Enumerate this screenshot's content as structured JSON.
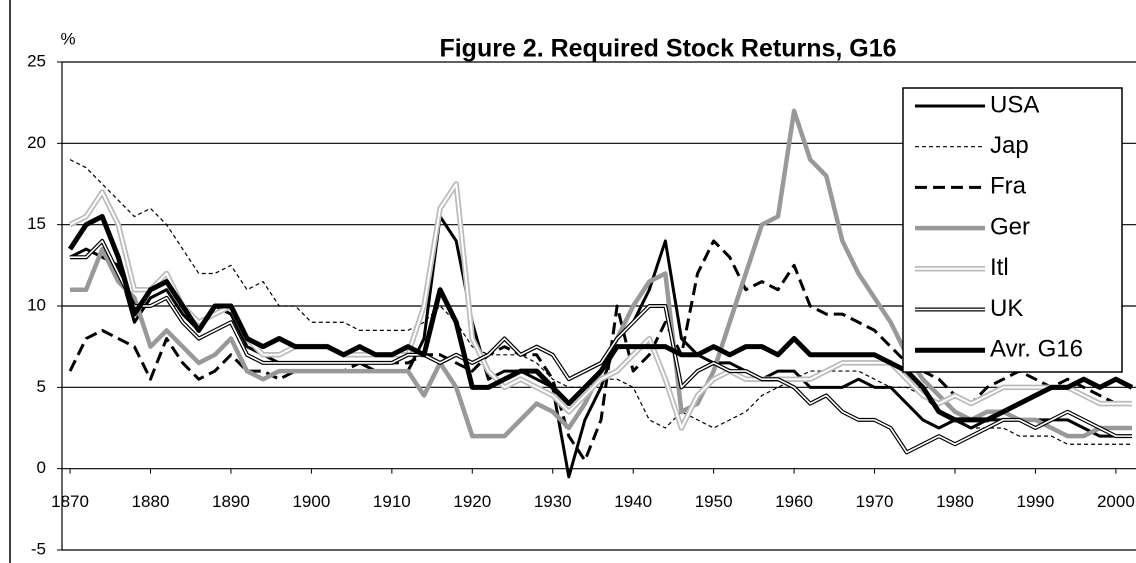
{
  "chart_data": {
    "type": "line",
    "title": "Figure 2. Required Stock Returns, G16",
    "y_unit": "%",
    "x": [
      1870,
      1872,
      1874,
      1876,
      1878,
      1880,
      1882,
      1884,
      1886,
      1888,
      1890,
      1892,
      1894,
      1896,
      1898,
      1900,
      1902,
      1904,
      1906,
      1908,
      1910,
      1912,
      1914,
      1916,
      1918,
      1920,
      1922,
      1924,
      1926,
      1928,
      1930,
      1932,
      1934,
      1936,
      1938,
      1940,
      1942,
      1944,
      1946,
      1948,
      1950,
      1952,
      1954,
      1956,
      1958,
      1960,
      1962,
      1964,
      1966,
      1968,
      1970,
      1972,
      1974,
      1976,
      1978,
      1980,
      1982,
      1984,
      1986,
      1988,
      1990,
      1992,
      1994,
      1996,
      1998,
      2000,
      2002
    ],
    "xlim": [
      1869,
      2002.5
    ],
    "xticks": [
      1870,
      1880,
      1890,
      1900,
      1910,
      1920,
      1930,
      1940,
      1950,
      1960,
      1970,
      1980,
      1990,
      2000
    ],
    "ylim": [
      -5,
      25
    ],
    "yticks": [
      -5,
      0,
      5,
      10,
      15,
      20,
      25
    ],
    "grid": true,
    "legend": "upper right",
    "series": [
      {
        "name": "USA",
        "color": "#000000",
        "values": [
          13,
          13.5,
          13,
          12.5,
          9,
          10.5,
          11,
          9.5,
          8.5,
          10,
          9.5,
          7.5,
          7,
          6.5,
          6.5,
          6.5,
          6.5,
          6.5,
          6.5,
          6,
          6,
          6,
          8,
          15.5,
          14,
          9,
          5.5,
          6,
          6,
          5.5,
          5,
          -0.5,
          3,
          5,
          8,
          9,
          11,
          14,
          8,
          7,
          6.5,
          6.5,
          6,
          5.5,
          6,
          6,
          5,
          5,
          5,
          5.5,
          5,
          5,
          4,
          3,
          2.5,
          3,
          2.5,
          3,
          3,
          3,
          3,
          3,
          3,
          2.5,
          2,
          2,
          2
        ]
      },
      {
        "name": "Jap",
        "color": "#000000",
        "values": [
          19,
          18.5,
          17.5,
          16.5,
          15.5,
          16,
          15,
          13.5,
          12,
          12,
          12.5,
          11,
          11.5,
          10,
          10,
          9,
          9,
          9,
          8.5,
          8.5,
          8.5,
          8.5,
          9,
          10,
          9,
          7.5,
          7,
          7,
          7,
          6.5,
          5.5,
          5,
          5,
          5.5,
          5.5,
          5,
          3,
          2.5,
          3.5,
          3,
          2.5,
          3,
          3.5,
          4.5,
          5,
          5.5,
          6,
          6,
          6,
          6,
          5.5,
          5,
          5,
          4.5,
          3.5,
          3,
          2.5,
          2.5,
          2.5,
          2,
          2,
          2,
          1.5,
          1.5,
          1.5,
          1.5,
          1.5
        ]
      },
      {
        "name": "Fra",
        "color": "#000000",
        "values": [
          6,
          8,
          8.5,
          8,
          7.5,
          5.5,
          8,
          6.5,
          5.5,
          6,
          7,
          6,
          6,
          5.5,
          6,
          6,
          6,
          6,
          6.5,
          6.5,
          6.5,
          6.5,
          7,
          7,
          6.5,
          6,
          7,
          7.5,
          7,
          7,
          5.5,
          2,
          0.5,
          3,
          10,
          6,
          7,
          9,
          7,
          12,
          14,
          13,
          11,
          11.5,
          11,
          12.5,
          10,
          9.5,
          9.5,
          9,
          8.5,
          7.5,
          6.5,
          6,
          5.5,
          4.5,
          4,
          5,
          5.5,
          6,
          5.5,
          5,
          5.5,
          5,
          4.5,
          4,
          4
        ]
      },
      {
        "name": "Ger",
        "color": "#999999",
        "values": [
          11,
          11,
          13.5,
          11.5,
          10.5,
          7.5,
          8.5,
          7.5,
          6.5,
          7,
          8,
          6,
          5.5,
          6,
          6,
          6,
          6,
          6,
          6,
          6,
          6,
          6,
          4.5,
          6.5,
          5,
          2,
          2,
          2,
          3,
          4,
          3.5,
          2.5,
          4,
          6,
          8,
          10,
          11.5,
          12,
          3.5,
          4,
          6,
          9,
          12,
          15,
          15.5,
          22,
          19,
          18,
          14,
          12,
          10.5,
          9,
          7,
          5.5,
          4.5,
          3.5,
          3,
          3.5,
          3.5,
          3,
          3,
          2.5,
          2,
          2,
          2.5,
          2.5,
          2.5
        ]
      },
      {
        "name": "Itl",
        "color": "#bbbbbb",
        "values": [
          15,
          15.5,
          17,
          15,
          11,
          11,
          12,
          10,
          9,
          9.5,
          10,
          8,
          7,
          7,
          7.5,
          7.5,
          7.5,
          7,
          7,
          7,
          7,
          7,
          10,
          16,
          17.5,
          8,
          6,
          5,
          5.5,
          5,
          4.5,
          3.5,
          4.5,
          5.5,
          6,
          7,
          8,
          5.5,
          2.5,
          4.5,
          5.5,
          6,
          5.5,
          5.5,
          5.5,
          5.5,
          5.5,
          6,
          6.5,
          6.5,
          6.5,
          6.5,
          5.5,
          4.5,
          4,
          4.5,
          4,
          4.5,
          5,
          5,
          5,
          5,
          5,
          4.5,
          4,
          4,
          4
        ]
      },
      {
        "name": "UK",
        "color": "#000000",
        "values": [
          13,
          13,
          14,
          12,
          10,
          10,
          10.5,
          9,
          8,
          8.5,
          9,
          7,
          6.5,
          6.5,
          6.5,
          6.5,
          6.5,
          6.5,
          6.5,
          6.5,
          6.5,
          7,
          7,
          6.5,
          7,
          6.5,
          7,
          8,
          7,
          7.5,
          7,
          5.5,
          6,
          6.5,
          8,
          9,
          10,
          10,
          5,
          6,
          6.5,
          6,
          6,
          5.5,
          5.5,
          5,
          4,
          4.5,
          3.5,
          3,
          3,
          2.5,
          1,
          1.5,
          2,
          1.5,
          2,
          2.5,
          3,
          3,
          2.5,
          3,
          3.5,
          3,
          2.5,
          2,
          2
        ]
      },
      {
        "name": "Avr. G16",
        "color": "#000000",
        "values": [
          13.5,
          15,
          15.5,
          13,
          9.5,
          11,
          11.5,
          10,
          8.5,
          10,
          10,
          8,
          7.5,
          8,
          7.5,
          7.5,
          7.5,
          7,
          7.5,
          7,
          7,
          7.5,
          7,
          11,
          9,
          5,
          5,
          5.5,
          6,
          6,
          5,
          4,
          5,
          6,
          7.5,
          7.5,
          7.5,
          7.5,
          7,
          7,
          7.5,
          7,
          7.5,
          7.5,
          7,
          8,
          7,
          7,
          7,
          7,
          7,
          6.5,
          6,
          5,
          3.5,
          3,
          3,
          3,
          3.5,
          4,
          4.5,
          5,
          5,
          5.5,
          5,
          5.5,
          5
        ]
      }
    ]
  }
}
